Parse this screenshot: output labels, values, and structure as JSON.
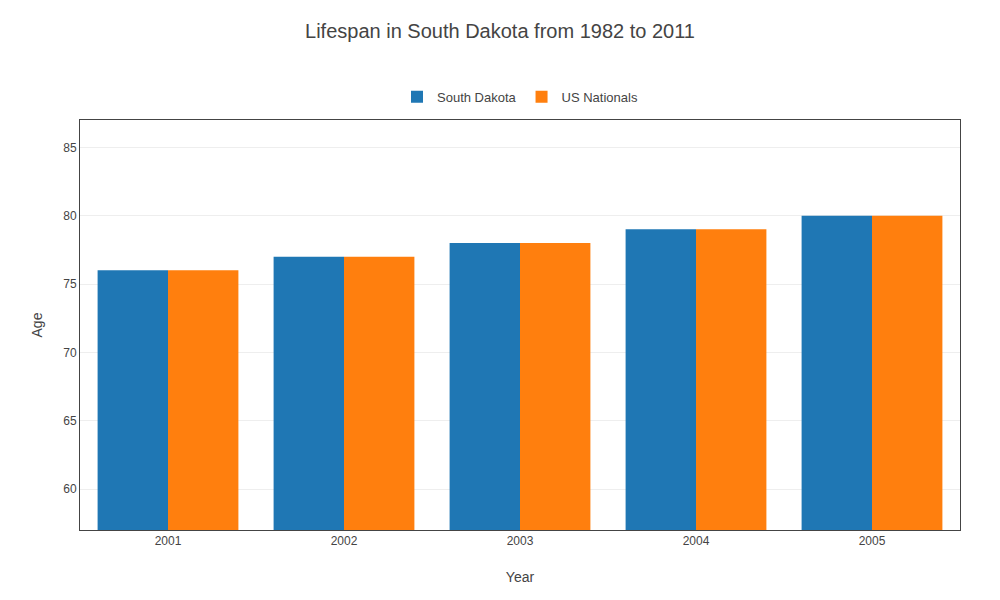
{
  "chart_data": {
    "type": "bar",
    "title": "Lifespan in South Dakota from 1982 to 2011",
    "xlabel": "Year",
    "ylabel": "Age",
    "categories": [
      "2001",
      "2002",
      "2003",
      "2004",
      "2005"
    ],
    "series": [
      {
        "name": "South Dakota",
        "values": [
          76,
          77,
          78,
          79,
          80
        ]
      },
      {
        "name": "US Nationals",
        "values": [
          76,
          77,
          78,
          79,
          80
        ]
      }
    ],
    "ylim": [
      57,
      87
    ],
    "yticks": [
      60,
      65,
      70,
      75,
      80,
      85
    ],
    "grid": true,
    "legend": "top"
  }
}
